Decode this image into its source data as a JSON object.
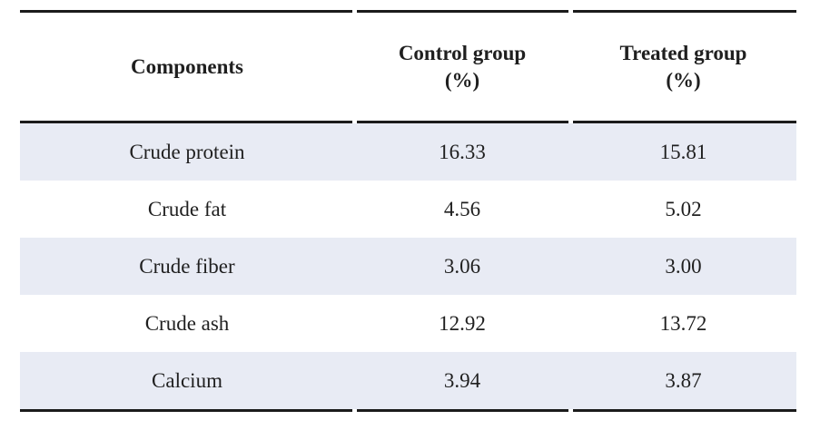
{
  "table": {
    "columns": [
      {
        "label": "Components",
        "unit": ""
      },
      {
        "label": "Control group",
        "unit": "(%)"
      },
      {
        "label": "Treated group",
        "unit": "(%)"
      }
    ],
    "rows": [
      {
        "component": "Crude protein",
        "control": "16.33",
        "treated": "15.81"
      },
      {
        "component": "Crude fat",
        "control": "4.56",
        "treated": "5.02"
      },
      {
        "component": "Crude fiber",
        "control": "3.06",
        "treated": "3.00"
      },
      {
        "component": "Crude ash",
        "control": "12.92",
        "treated": "13.72"
      },
      {
        "component": "Calcium",
        "control": "3.94",
        "treated": "3.87"
      }
    ],
    "colors": {
      "row_band": "#e8ebf4",
      "rule": "#1b1b1b",
      "text": "#1f1f1f"
    }
  }
}
